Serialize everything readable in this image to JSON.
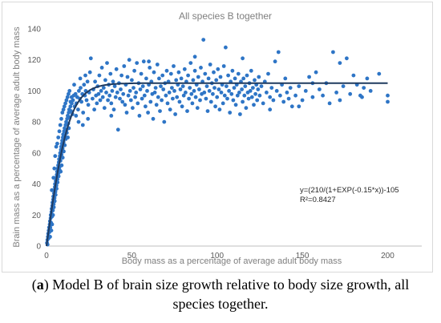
{
  "chart_data": {
    "type": "scatter",
    "title": "All species B together",
    "xlabel": "Body mass as a percentage of average adult body mass",
    "ylabel": "Brain mass as a percentage of average adult body mass",
    "xlim": [
      0,
      220
    ],
    "ylim": [
      0,
      140
    ],
    "x_ticks": [
      "0",
      "50",
      "100",
      "150",
      "200"
    ],
    "y_ticks": [
      "0",
      "20",
      "40",
      "60",
      "80",
      "100",
      "120",
      "140"
    ],
    "grid": false,
    "legend": "none",
    "point_color": "#2e75c6",
    "fit_color": "#1f3a5f",
    "fit_equation": "y=(210/(1+EXP(-0.15*x))-105",
    "r_squared": "R²=0.8427",
    "fit_function": {
      "a": 210,
      "k": 0.15,
      "c": 105,
      "x_range": [
        0,
        200
      ]
    },
    "points": [
      [
        0.3,
        2
      ],
      [
        0.5,
        4
      ],
      [
        0.6,
        1
      ],
      [
        0.8,
        6
      ],
      [
        1.0,
        8
      ],
      [
        1.2,
        5
      ],
      [
        1.3,
        10
      ],
      [
        1.5,
        12
      ],
      [
        1.7,
        9
      ],
      [
        1.9,
        14
      ],
      [
        2.0,
        16
      ],
      [
        2.2,
        12
      ],
      [
        2.4,
        18
      ],
      [
        2.5,
        20
      ],
      [
        2.7,
        15
      ],
      [
        2.9,
        22
      ],
      [
        3.0,
        24
      ],
      [
        3.2,
        19
      ],
      [
        3.4,
        26
      ],
      [
        3.5,
        28
      ],
      [
        3.7,
        23
      ],
      [
        3.9,
        30
      ],
      [
        4.0,
        32
      ],
      [
        4.2,
        27
      ],
      [
        4.4,
        34
      ],
      [
        4.5,
        36
      ],
      [
        4.7,
        31
      ],
      [
        4.9,
        38
      ],
      [
        5.0,
        40
      ],
      [
        5.2,
        35
      ],
      [
        5.4,
        42
      ],
      [
        5.6,
        44
      ],
      [
        5.8,
        39
      ],
      [
        6.0,
        46
      ],
      [
        6.2,
        48
      ],
      [
        6.4,
        43
      ],
      [
        6.6,
        50
      ],
      [
        6.8,
        52
      ],
      [
        7.0,
        47
      ],
      [
        7.2,
        54
      ],
      [
        7.4,
        56
      ],
      [
        7.6,
        51
      ],
      [
        7.8,
        58
      ],
      [
        8.0,
        60
      ],
      [
        8.2,
        55
      ],
      [
        8.4,
        62
      ],
      [
        8.6,
        64
      ],
      [
        8.8,
        59
      ],
      [
        9.0,
        66
      ],
      [
        9.2,
        68
      ],
      [
        9.4,
        63
      ],
      [
        9.6,
        70
      ],
      [
        9.8,
        72
      ],
      [
        10.0,
        67
      ],
      [
        10.3,
        74
      ],
      [
        10.6,
        76
      ],
      [
        10.9,
        71
      ],
      [
        11.2,
        78
      ],
      [
        11.5,
        80
      ],
      [
        11.8,
        75
      ],
      [
        12.1,
        82
      ],
      [
        12.4,
        84
      ],
      [
        12.7,
        79
      ],
      [
        13.0,
        86
      ],
      [
        13.3,
        88
      ],
      [
        13.6,
        83
      ],
      [
        14.0,
        90
      ],
      [
        14.4,
        87
      ],
      [
        14.8,
        92
      ],
      [
        15.2,
        85
      ],
      [
        2.1,
        6
      ],
      [
        2.8,
        10
      ],
      [
        3.3,
        14
      ],
      [
        3.8,
        20
      ],
      [
        4.3,
        25
      ],
      [
        4.8,
        29
      ],
      [
        5.3,
        33
      ],
      [
        5.9,
        37
      ],
      [
        6.5,
        41
      ],
      [
        7.1,
        45
      ],
      [
        7.7,
        49
      ],
      [
        8.3,
        48
      ],
      [
        8.9,
        52
      ],
      [
        9.5,
        57
      ],
      [
        10.1,
        61
      ],
      [
        10.7,
        65
      ],
      [
        11.3,
        69
      ],
      [
        11.9,
        73
      ],
      [
        12.5,
        70
      ],
      [
        13.1,
        76
      ],
      [
        3.1,
        36
      ],
      [
        4.1,
        44
      ],
      [
        4.6,
        50
      ],
      [
        5.1,
        58
      ],
      [
        5.7,
        64
      ],
      [
        6.3,
        66
      ],
      [
        6.9,
        70
      ],
      [
        7.5,
        74
      ],
      [
        8.1,
        78
      ],
      [
        8.7,
        82
      ],
      [
        9.3,
        86
      ],
      [
        9.9,
        88
      ],
      [
        10.5,
        90
      ],
      [
        11.1,
        92
      ],
      [
        11.7,
        94
      ],
      [
        12.3,
        96
      ],
      [
        12.9,
        98
      ],
      [
        13.5,
        100
      ],
      [
        14.1,
        93
      ],
      [
        14.7,
        96
      ],
      [
        15.5,
        94
      ],
      [
        16.0,
        97
      ],
      [
        16.5,
        90
      ],
      [
        17.0,
        98
      ],
      [
        17.5,
        92
      ],
      [
        18.0,
        96
      ],
      [
        18.5,
        88
      ],
      [
        19.0,
        100
      ],
      [
        19.5,
        95
      ],
      [
        20.0,
        102
      ],
      [
        20.5,
        93
      ],
      [
        21.0,
        98
      ],
      [
        21.5,
        86
      ],
      [
        22.0,
        104
      ],
      [
        22.5,
        97
      ],
      [
        23.0,
        100
      ],
      [
        23.5,
        94
      ],
      [
        24.0,
        106
      ],
      [
        24.5,
        91
      ],
      [
        25.0,
        99
      ],
      [
        16.2,
        104
      ],
      [
        17.3,
        84
      ],
      [
        18.8,
        80
      ],
      [
        19.8,
        108
      ],
      [
        21.3,
        78
      ],
      [
        22.8,
        110
      ],
      [
        24.3,
        82
      ],
      [
        25.5,
        112
      ],
      [
        26.0,
        121
      ],
      [
        27.0,
        95
      ],
      [
        27.5,
        101
      ],
      [
        28.0,
        88
      ],
      [
        28.5,
        106
      ],
      [
        29.0,
        97
      ],
      [
        29.5,
        92
      ],
      [
        30.0,
        103
      ],
      [
        30.5,
        98
      ],
      [
        31.0,
        110
      ],
      [
        31.5,
        94
      ],
      [
        32.0,
        100
      ],
      [
        32.5,
        115
      ],
      [
        33.0,
        96
      ],
      [
        33.5,
        102
      ],
      [
        34.0,
        89
      ],
      [
        34.5,
        107
      ],
      [
        35.0,
        99
      ],
      [
        35.5,
        118
      ],
      [
        36.0,
        94
      ],
      [
        36.5,
        104
      ],
      [
        37.0,
        97
      ],
      [
        37.5,
        111
      ],
      [
        38.0,
        92
      ],
      [
        38.5,
        100
      ],
      [
        39.0,
        106
      ],
      [
        39.5,
        88
      ],
      [
        40.0,
        103
      ],
      [
        40.5,
        96
      ],
      [
        41.0,
        114
      ],
      [
        41.5,
        99
      ],
      [
        42.0,
        75
      ],
      [
        42.5,
        105
      ],
      [
        43.0,
        95
      ],
      [
        43.5,
        101
      ],
      [
        44.0,
        110
      ],
      [
        44.5,
        93
      ],
      [
        45.0,
        98
      ],
      [
        45.5,
        116
      ],
      [
        46.0,
        91
      ],
      [
        46.5,
        104
      ],
      [
        47.0,
        86
      ],
      [
        47.5,
        109
      ],
      [
        48.0,
        97
      ],
      [
        48.5,
        120
      ],
      [
        49.0,
        100
      ],
      [
        49.5,
        94
      ],
      [
        50.0,
        107
      ],
      [
        50.5,
        89
      ],
      [
        51.0,
        102
      ],
      [
        51.5,
        113
      ],
      [
        52.0,
        96
      ],
      [
        52.5,
        99
      ],
      [
        53.0,
        118
      ],
      [
        53.5,
        92
      ],
      [
        54.0,
        105
      ],
      [
        54.5,
        84
      ],
      [
        55.0,
        101
      ],
      [
        55.5,
        111
      ],
      [
        56.0,
        95
      ],
      [
        56.5,
        103
      ],
      [
        57.0,
        119
      ],
      [
        57.5,
        97
      ],
      [
        58.0,
        90
      ],
      [
        58.5,
        108
      ],
      [
        59.0,
        100
      ],
      [
        59.5,
        86
      ],
      [
        60.0,
        104
      ],
      [
        60.5,
        115
      ],
      [
        61.0,
        93
      ],
      [
        61.5,
        106
      ],
      [
        62.0,
        98
      ],
      [
        62.5,
        82
      ],
      [
        63.0,
        112
      ],
      [
        63.5,
        99
      ],
      [
        64.0,
        102
      ],
      [
        64.5,
        91
      ],
      [
        65.0,
        117
      ],
      [
        65.5,
        96
      ],
      [
        66.0,
        108
      ],
      [
        66.5,
        87
      ],
      [
        67.0,
        103
      ],
      [
        67.5,
        94
      ],
      [
        68.0,
        110
      ],
      [
        68.5,
        101
      ],
      [
        69.0,
        80
      ],
      [
        69.5,
        105
      ],
      [
        70.0,
        97
      ],
      [
        70.5,
        113
      ],
      [
        71.0,
        92
      ],
      [
        71.5,
        106
      ],
      [
        72.0,
        99
      ],
      [
        72.5,
        88
      ],
      [
        73.0,
        111
      ],
      [
        73.5,
        102
      ],
      [
        74.0,
        95
      ],
      [
        74.5,
        116
      ],
      [
        75.0,
        100
      ],
      [
        75.5,
        85
      ],
      [
        76.0,
        107
      ],
      [
        76.5,
        96
      ],
      [
        77.0,
        104
      ],
      [
        77.5,
        112
      ],
      [
        78.0,
        93
      ],
      [
        78.5,
        101
      ],
      [
        79.0,
        108
      ],
      [
        79.5,
        90
      ],
      [
        80.0,
        103
      ],
      [
        80.5,
        97
      ],
      [
        81.0,
        114
      ],
      [
        81.5,
        99
      ],
      [
        82.0,
        106
      ],
      [
        82.5,
        87
      ],
      [
        83.0,
        110
      ],
      [
        83.5,
        95
      ],
      [
        84.0,
        102
      ],
      [
        84.5,
        118
      ],
      [
        85.0,
        98
      ],
      [
        85.5,
        92
      ],
      [
        86.0,
        107
      ],
      [
        86.5,
        100
      ],
      [
        87.0,
        113
      ],
      [
        87.5,
        96
      ],
      [
        88.0,
        104
      ],
      [
        88.5,
        89
      ],
      [
        89.0,
        109
      ],
      [
        89.5,
        101
      ],
      [
        90.0,
        94
      ],
      [
        90.5,
        115
      ],
      [
        91.0,
        98
      ],
      [
        91.5,
        106
      ],
      [
        92.0,
        133
      ],
      [
        92.5,
        99
      ],
      [
        93.0,
        111
      ],
      [
        93.5,
        95
      ],
      [
        94.0,
        103
      ],
      [
        94.5,
        87
      ],
      [
        95.0,
        108
      ],
      [
        95.5,
        100
      ],
      [
        96.0,
        117
      ],
      [
        96.5,
        93
      ],
      [
        97.0,
        105
      ],
      [
        97.5,
        98
      ],
      [
        98.0,
        112
      ],
      [
        98.5,
        102
      ],
      [
        99.0,
        90
      ],
      [
        99.5,
        107
      ],
      [
        100.0,
        96
      ],
      [
        100.5,
        114
      ],
      [
        101.0,
        101
      ],
      [
        101.5,
        88
      ],
      [
        102.0,
        109
      ],
      [
        102.5,
        99
      ],
      [
        103.0,
        104
      ],
      [
        103.5,
        92
      ],
      [
        104.0,
        116
      ],
      [
        104.5,
        97
      ],
      [
        105.0,
        128
      ],
      [
        105.5,
        103
      ],
      [
        106.0,
        95
      ],
      [
        106.5,
        110
      ],
      [
        107.0,
        100
      ],
      [
        107.5,
        86
      ],
      [
        108.0,
        106
      ],
      [
        108.5,
        98
      ],
      [
        109.0,
        113
      ],
      [
        109.5,
        94
      ],
      [
        110.0,
        102
      ],
      [
        110.5,
        108
      ],
      [
        111.0,
        91
      ],
      [
        111.5,
        104
      ],
      [
        112.0,
        97
      ],
      [
        112.5,
        111
      ],
      [
        113.0,
        99
      ],
      [
        113.5,
        85
      ],
      [
        114.0,
        106
      ],
      [
        114.5,
        101
      ],
      [
        115.0,
        93
      ],
      [
        115.5,
        108
      ],
      [
        116.0,
        97
      ],
      [
        116.5,
        103
      ],
      [
        117.0,
        89
      ],
      [
        117.5,
        110
      ],
      [
        118.0,
        99
      ],
      [
        118.5,
        95
      ],
      [
        119.0,
        105
      ],
      [
        119.5,
        100
      ],
      [
        120.0,
        113
      ],
      [
        120.5,
        96
      ],
      [
        121.0,
        102
      ],
      [
        121.5,
        91
      ],
      [
        122.0,
        107
      ],
      [
        122.5,
        98
      ],
      [
        123.0,
        104
      ],
      [
        123.5,
        94
      ],
      [
        124.0,
        101
      ],
      [
        124.5,
        109
      ],
      [
        125.0,
        97
      ],
      [
        126.0,
        103
      ],
      [
        127.0,
        92
      ],
      [
        128.0,
        106
      ],
      [
        129.0,
        99
      ],
      [
        130.0,
        111
      ],
      [
        131.0,
        96
      ],
      [
        132.0,
        102
      ],
      [
        133.0,
        94
      ],
      [
        134.0,
        119
      ],
      [
        135.0,
        100
      ],
      [
        136.0,
        125
      ],
      [
        137.0,
        97
      ],
      [
        138.0,
        104
      ],
      [
        139.0,
        93
      ],
      [
        140.0,
        108
      ],
      [
        141.0,
        99
      ],
      [
        142.0,
        95
      ],
      [
        143.0,
        102
      ],
      [
        144.0,
        90
      ],
      [
        146.0,
        97
      ],
      [
        148.0,
        103
      ],
      [
        150.0,
        94
      ],
      [
        152.0,
        100
      ],
      [
        154.0,
        109
      ],
      [
        156.0,
        96
      ],
      [
        158.0,
        112
      ],
      [
        160.0,
        101
      ],
      [
        162.0,
        97
      ],
      [
        164.0,
        105
      ],
      [
        166.0,
        92
      ],
      [
        168.0,
        125
      ],
      [
        170.0,
        99
      ],
      [
        172.0,
        94
      ],
      [
        174.0,
        103
      ],
      [
        176.0,
        121
      ],
      [
        178.0,
        98
      ],
      [
        180.0,
        110
      ],
      [
        182.0,
        104
      ],
      [
        184.0,
        97
      ],
      [
        186.0,
        102
      ],
      [
        188.0,
        108
      ],
      [
        190.0,
        100
      ],
      [
        195.0,
        111
      ],
      [
        200.0,
        97
      ],
      [
        200.0,
        93
      ],
      [
        172.0,
        118
      ],
      [
        185.0,
        96
      ],
      [
        148.0,
        90
      ],
      [
        156.0,
        105
      ],
      [
        131.0,
        88
      ],
      [
        115.0,
        121
      ],
      [
        87.0,
        122
      ],
      [
        60.0,
        119
      ],
      [
        38.0,
        84
      ]
    ]
  },
  "caption": {
    "label": "a",
    "open": "(",
    "close": ")",
    "line1_rest": " Model B of brain size growth relative to body size growth, all",
    "line2": "species together."
  }
}
